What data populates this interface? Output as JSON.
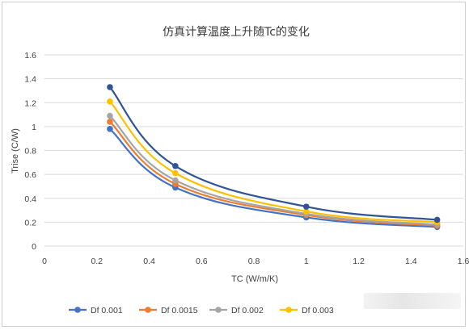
{
  "chart_data": {
    "type": "line",
    "title": "仿真计算温度上升随Tc的变化",
    "xlabel": "TC (W/m/K)",
    "ylabel": "Trise (C/W)",
    "xlim": [
      0,
      1.6
    ],
    "ylim": [
      0,
      1.6
    ],
    "xticks": [
      "0",
      "0.2",
      "0.4",
      "0.6",
      "0.8",
      "1",
      "1.2",
      "1.4",
      "1.6"
    ],
    "yticks": [
      "0",
      "0.2",
      "0.4",
      "0.6",
      "0.8",
      "1",
      "1.2",
      "1.4",
      "1.6"
    ],
    "grid": "horizontal",
    "legend_position": "bottom",
    "x": [
      0.25,
      0.5,
      1,
      1.5
    ],
    "series": [
      {
        "name": "Df 0.001",
        "color": "#4472C4",
        "values": [
          0.98,
          0.49,
          0.24,
          0.16
        ]
      },
      {
        "name": "Df 0.0015",
        "color": "#ED7D31",
        "values": [
          1.04,
          0.52,
          0.26,
          0.17
        ]
      },
      {
        "name": "Df 0.002",
        "color": "#A5A5A5",
        "values": [
          1.09,
          0.55,
          0.27,
          0.18
        ]
      },
      {
        "name": "Df 0.003",
        "color": "#FFC000",
        "values": [
          1.21,
          0.61,
          0.29,
          0.2
        ]
      },
      {
        "name": "",
        "color": "#2F5597",
        "values": [
          1.33,
          0.67,
          0.33,
          0.22
        ]
      }
    ]
  }
}
